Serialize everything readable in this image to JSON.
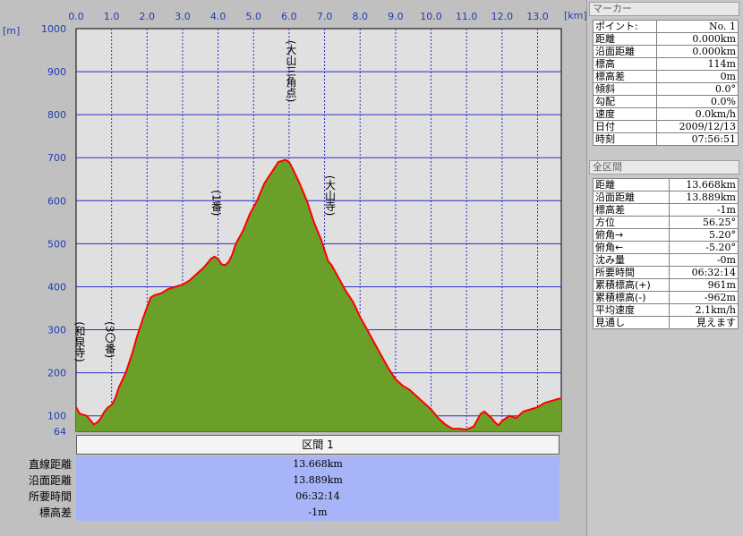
{
  "chart_data": {
    "type": "area",
    "x_unit": "[km]",
    "y_unit": "[m]",
    "xlim": [
      0,
      13.668
    ],
    "ylim": [
      64,
      1000
    ],
    "x_ticks": [
      "0.0",
      "1.0",
      "2.0",
      "3.0",
      "4.0",
      "5.0",
      "6.0",
      "7.0",
      "8.0",
      "9.0",
      "10.0",
      "11.0",
      "12.0",
      "13.0"
    ],
    "y_ticks": [
      "1000",
      "900",
      "800",
      "700",
      "600",
      "500",
      "400",
      "300",
      "200",
      "100",
      "64"
    ],
    "colors": {
      "fill": "#6aa02a",
      "line": "#ff0000",
      "grid": "#2c2cc8",
      "plot_bg": "#e0e0e0",
      "axis_text": "#1e3cb4"
    },
    "series": [
      {
        "x": [
          0,
          0.1,
          0.3,
          0.5,
          0.6,
          0.7,
          0.8,
          0.9,
          1.0,
          1.1,
          1.2,
          1.4,
          1.6,
          1.7,
          1.9,
          2.1,
          2.2,
          2.4,
          2.6,
          2.8,
          3.0,
          3.2,
          3.4,
          3.6,
          3.8,
          3.9,
          4.0,
          4.1,
          4.2,
          4.3,
          4.4,
          4.5,
          4.7,
          4.9,
          5.1,
          5.3,
          5.5,
          5.7,
          5.9,
          6.0,
          6.1,
          6.3,
          6.5,
          6.7,
          6.9,
          7.1,
          7.2,
          7.4,
          7.6,
          7.8,
          8.0,
          8.2,
          8.4,
          8.6,
          8.8,
          9.0,
          9.2,
          9.4,
          9.6,
          9.8,
          10.0,
          10.2,
          10.4,
          10.6,
          10.8,
          11.0,
          11.2,
          11.4,
          11.5,
          11.7,
          11.8,
          11.9,
          12.0,
          12.2,
          12.4,
          12.6,
          12.8,
          13.0,
          13.2,
          13.4,
          13.6,
          13.668
        ],
        "y": [
          120,
          105,
          100,
          80,
          85,
          95,
          110,
          120,
          125,
          140,
          165,
          200,
          250,
          280,
          330,
          375,
          380,
          385,
          395,
          400,
          405,
          415,
          430,
          445,
          465,
          470,
          465,
          452,
          450,
          458,
          475,
          500,
          530,
          570,
          600,
          640,
          665,
          690,
          695,
          690,
          675,
          640,
          600,
          550,
          510,
          460,
          450,
          420,
          390,
          365,
          330,
          300,
          270,
          240,
          210,
          185,
          170,
          160,
          145,
          130,
          115,
          95,
          80,
          70,
          70,
          68,
          75,
          105,
          110,
          95,
          85,
          78,
          88,
          100,
          95,
          110,
          115,
          120,
          130,
          135,
          140,
          140
        ]
      }
    ],
    "annotations": [
      {
        "x": 0.05,
        "y": 120,
        "label": "(和泉寺)"
      },
      {
        "x": 0.9,
        "y": 125,
        "label": "(3〇番)"
      },
      {
        "x": 3.9,
        "y": 470,
        "label": "(1番)"
      },
      {
        "x": 6.0,
        "y": 695,
        "label": "(大山三角点)"
      },
      {
        "x": 7.1,
        "y": 460,
        "label": "(大山寺)"
      }
    ]
  },
  "section": {
    "title": "区間 1",
    "rows": [
      {
        "label": "直線距離",
        "value": "13.668km"
      },
      {
        "label": "沿面距離",
        "value": "13.889km"
      },
      {
        "label": "所要時間",
        "value": "06:32:14"
      },
      {
        "label": "標高差",
        "value": "-1m"
      }
    ]
  },
  "marker_panel": {
    "title": "マーカー",
    "rows": [
      {
        "label": "ポイント:",
        "value": "No. 1"
      },
      {
        "label": "距離",
        "value": "0.000km"
      },
      {
        "label": "沿面距離",
        "value": "0.000km"
      },
      {
        "label": "標高",
        "value": "114m"
      },
      {
        "label": "標高差",
        "value": "0m"
      },
      {
        "label": "傾斜",
        "value": "0.0°"
      },
      {
        "label": "勾配",
        "value": "0.0%"
      },
      {
        "label": "速度",
        "value": "0.0km/h"
      },
      {
        "label": "日付",
        "value": "2009/12/13"
      },
      {
        "label": "時刻",
        "value": "07:56:51"
      }
    ]
  },
  "total_panel": {
    "title": "全区間",
    "rows": [
      {
        "label": "距離",
        "value": "13.668km"
      },
      {
        "label": "沿面距離",
        "value": "13.889km"
      },
      {
        "label": "標高差",
        "value": "-1m"
      },
      {
        "label": "方位",
        "value": "56.25°"
      },
      {
        "label": "俯角→",
        "value": "5.20°"
      },
      {
        "label": "俯角←",
        "value": "-5.20°"
      },
      {
        "label": "沈み量",
        "value": "-0m"
      },
      {
        "label": "所要時間",
        "value": "06:32:14"
      },
      {
        "label": "累積標高(+)",
        "value": "961m"
      },
      {
        "label": "累積標高(-)",
        "value": "-962m"
      },
      {
        "label": "平均速度",
        "value": "2.1km/h"
      },
      {
        "label": "見通し",
        "value": "見えます"
      }
    ]
  }
}
